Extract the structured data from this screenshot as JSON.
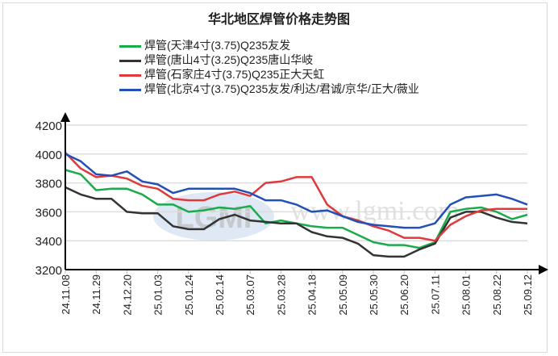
{
  "title": "华北地区焊管价格走势图",
  "watermark": {
    "logo": "LGMI",
    "url": "www.lgmi.com"
  },
  "chart_data": {
    "type": "line",
    "title": "华北地区焊管价格走势图",
    "xlabel": "",
    "ylabel": "",
    "ylim": [
      3200,
      4200
    ],
    "yticks": [
      "3200",
      "3400",
      "3600",
      "3800",
      "4000",
      "4200"
    ],
    "xticks": [
      "24.11.08",
      "24.11.29",
      "24.12.20",
      "25.01.03",
      "25.01.24",
      "25.02.14",
      "25.03.07",
      "25.03.28",
      "25.04.18",
      "25.05.09",
      "25.05.30",
      "25.06.20",
      "25.07.11",
      "25.08.01",
      "25.08.22",
      "25.09.12"
    ],
    "grid": true,
    "legend": "top",
    "series": [
      {
        "name": "焊管(天津4寸(3.75)Q235友发",
        "color": "#1aac4a",
        "values": [
          3890,
          3860,
          3750,
          3760,
          3760,
          3720,
          3650,
          3650,
          3600,
          3610,
          3630,
          3620,
          3640,
          3520,
          3540,
          3520,
          3500,
          3490,
          3490,
          3440,
          3390,
          3370,
          3370,
          3350,
          3390,
          3600,
          3620,
          3630,
          3600,
          3550,
          3580
        ]
      },
      {
        "name": "焊管(唐山4寸(3.25)Q235唐山华岐",
        "color": "#333333",
        "values": [
          3770,
          3720,
          3690,
          3690,
          3600,
          3590,
          3590,
          3500,
          3480,
          3480,
          3550,
          3580,
          3540,
          3530,
          3520,
          3520,
          3460,
          3430,
          3420,
          3380,
          3300,
          3290,
          3290,
          3340,
          3380,
          3560,
          3600,
          3600,
          3560,
          3530,
          3520
        ]
      },
      {
        "name": "焊管(石家庄4寸(3.75)Q235正大天虹",
        "color": "#e0393b",
        "values": [
          4010,
          3900,
          3840,
          3850,
          3830,
          3780,
          3760,
          3690,
          3680,
          3680,
          3720,
          3740,
          3710,
          3800,
          3810,
          3840,
          3840,
          3650,
          3570,
          3540,
          3500,
          3470,
          3420,
          3420,
          3400,
          3510,
          3570,
          3610,
          3620,
          3620,
          3620
        ]
      },
      {
        "name": "焊管(北京4寸(3.75)Q235友发/利达/君诚/京华/正大/薇业",
        "color": "#2350b8",
        "values": [
          4000,
          3950,
          3860,
          3850,
          3880,
          3810,
          3790,
          3730,
          3760,
          3760,
          3760,
          3760,
          3730,
          3680,
          3680,
          3650,
          3600,
          3610,
          3570,
          3530,
          3510,
          3500,
          3490,
          3490,
          3520,
          3650,
          3700,
          3710,
          3720,
          3690,
          3650
        ]
      }
    ]
  }
}
